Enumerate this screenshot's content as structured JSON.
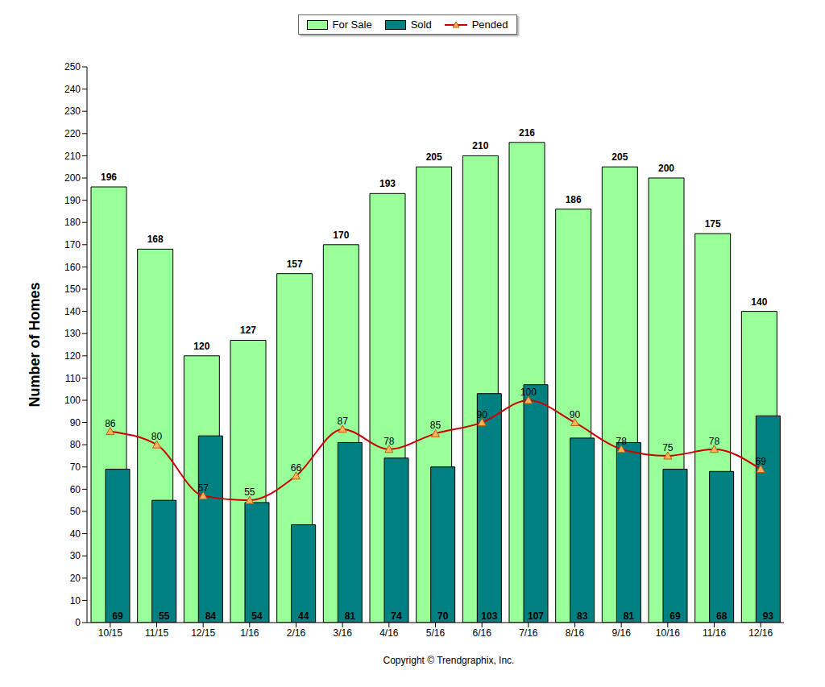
{
  "chart_data": {
    "type": "bar",
    "y_label": "Number of Homes",
    "annotations": [
      "Copyright © Trendgraphix, Inc."
    ],
    "categories": [
      "10/15",
      "11/15",
      "12/15",
      "1/16",
      "2/16",
      "3/16",
      "4/16",
      "5/16",
      "6/16",
      "7/16",
      "8/16",
      "9/16",
      "10/16",
      "11/16",
      "12/16"
    ],
    "series": [
      {
        "name": "For Sale",
        "type": "bar",
        "color": "#99ff99",
        "values": [
          196,
          168,
          120,
          127,
          157,
          170,
          193,
          205,
          210,
          216,
          186,
          205,
          200,
          175,
          140
        ]
      },
      {
        "name": "Sold",
        "type": "bar",
        "color": "#008080",
        "values": [
          69,
          55,
          84,
          54,
          44,
          81,
          74,
          70,
          103,
          107,
          83,
          81,
          69,
          68,
          93
        ]
      },
      {
        "name": "Pended",
        "type": "line",
        "color": "#cc0000",
        "marker": "triangle",
        "line_style": "solid",
        "values": [
          86,
          80,
          57,
          55,
          66,
          87,
          78,
          85,
          90,
          100,
          90,
          78,
          75,
          78,
          69
        ]
      }
    ],
    "ylim": [
      0,
      250
    ],
    "yticks": [
      0,
      10,
      20,
      30,
      40,
      50,
      60,
      70,
      80,
      90,
      100,
      110,
      120,
      130,
      140,
      150,
      160,
      170,
      180,
      190,
      200,
      210,
      220,
      230,
      240,
      250
    ],
    "grid": false,
    "legend": "top",
    "data_labels": true
  }
}
